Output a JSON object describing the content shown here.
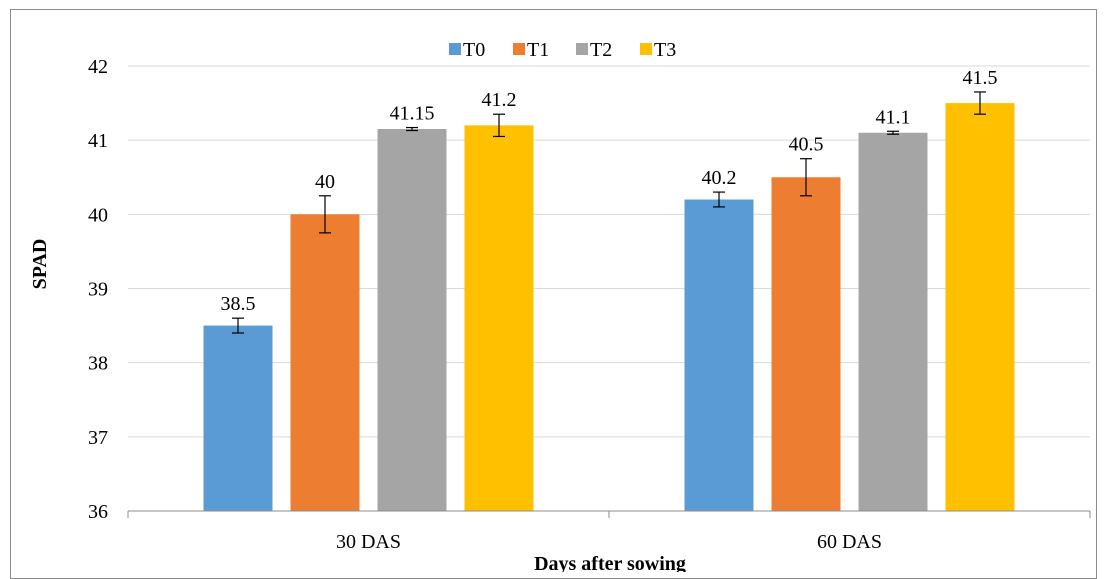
{
  "chart_data": {
    "type": "bar",
    "categories": [
      "30 DAS",
      "60 DAS"
    ],
    "series": [
      {
        "name": "T0",
        "values": [
          38.5,
          40.2
        ],
        "errors": [
          0.1,
          0.1
        ],
        "labels": [
          "38.5",
          "40.2"
        ],
        "color": "#5B9BD5"
      },
      {
        "name": "T1",
        "values": [
          40.0,
          40.5
        ],
        "errors": [
          0.25,
          0.25
        ],
        "labels": [
          "40",
          "40.5"
        ],
        "color": "#ED7D31"
      },
      {
        "name": "T2",
        "values": [
          41.15,
          41.1
        ],
        "errors": [
          0.02,
          0.02
        ],
        "labels": [
          "41.15",
          "41.1"
        ],
        "color": "#A5A5A5"
      },
      {
        "name": "T3",
        "values": [
          41.2,
          41.5
        ],
        "errors": [
          0.15,
          0.15
        ],
        "labels": [
          "41.2",
          "41.5"
        ],
        "color": "#FFC000"
      }
    ],
    "title": "",
    "xlabel": "Days after sowing",
    "ylabel": "SPAD",
    "ylim": [
      36,
      42
    ],
    "yticks": [
      "36",
      "37",
      "38",
      "39",
      "40",
      "41",
      "42"
    ],
    "grid": true,
    "legend_position": "top"
  }
}
